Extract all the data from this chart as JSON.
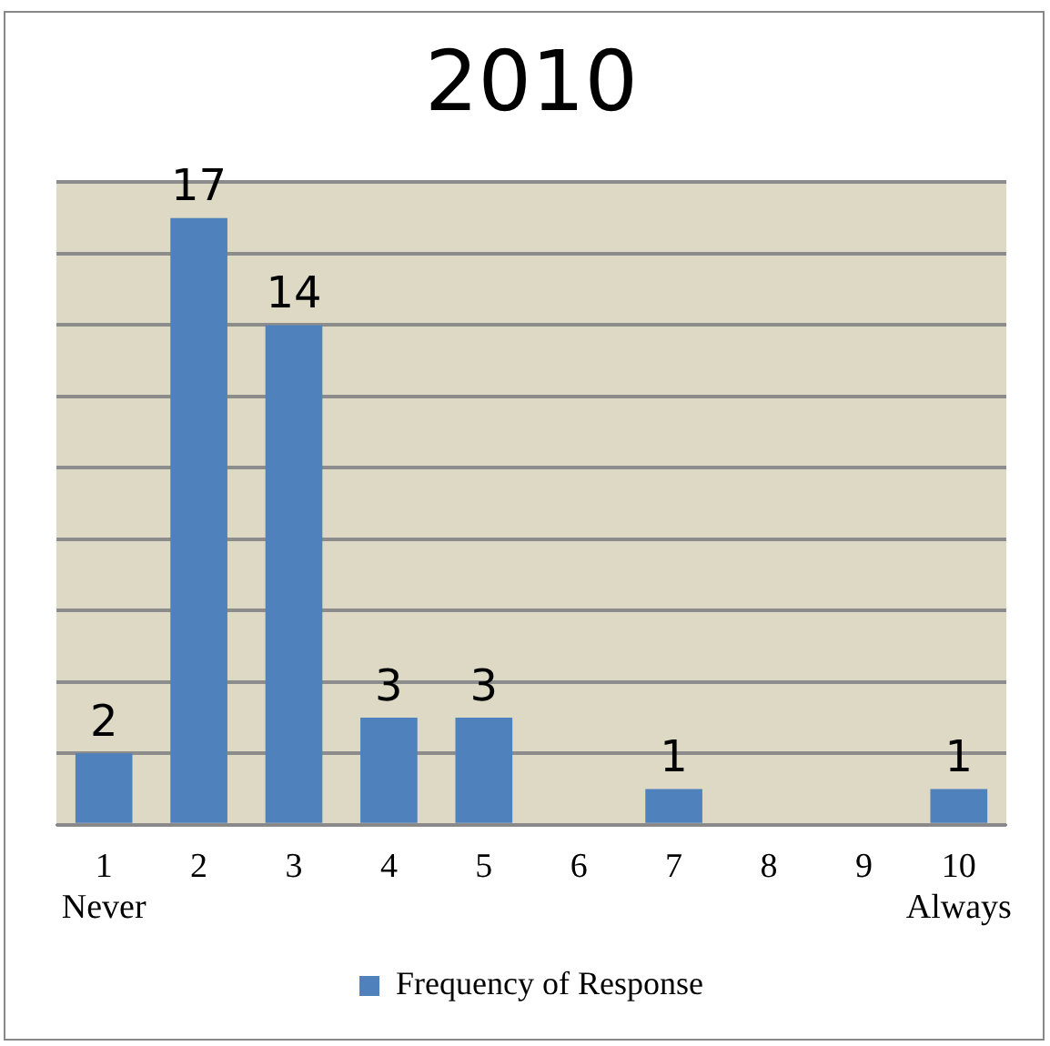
{
  "chart_data": {
    "type": "bar",
    "title": "2010",
    "categories": [
      "1\nNever",
      "2",
      "3",
      "4",
      "5",
      "6",
      "7",
      "8",
      "9",
      "10\nAlways"
    ],
    "series": [
      {
        "name": "Frequency of Response",
        "color": "#4f81bd",
        "values": [
          2,
          17,
          14,
          3,
          3,
          null,
          1,
          null,
          null,
          1
        ],
        "value_labels": [
          "2",
          "17",
          "14",
          "3",
          "3",
          null,
          "1",
          null,
          null,
          "1"
        ]
      }
    ],
    "ylim": [
      0,
      18
    ],
    "yticks": [
      {
        "value": 0,
        "label": null
      },
      {
        "value": 2,
        "label": null
      },
      {
        "value": 4,
        "label": null
      },
      {
        "value": 6,
        "label": null
      },
      {
        "value": 8,
        "label": null
      },
      {
        "value": 10,
        "label": null
      },
      {
        "value": 12,
        "label": null
      },
      {
        "value": 14,
        "label": null
      },
      {
        "value": 16,
        "label": null
      },
      {
        "value": 18,
        "label": null
      }
    ],
    "tick_labels": "x",
    "grid": "y",
    "legend": "bottom"
  }
}
